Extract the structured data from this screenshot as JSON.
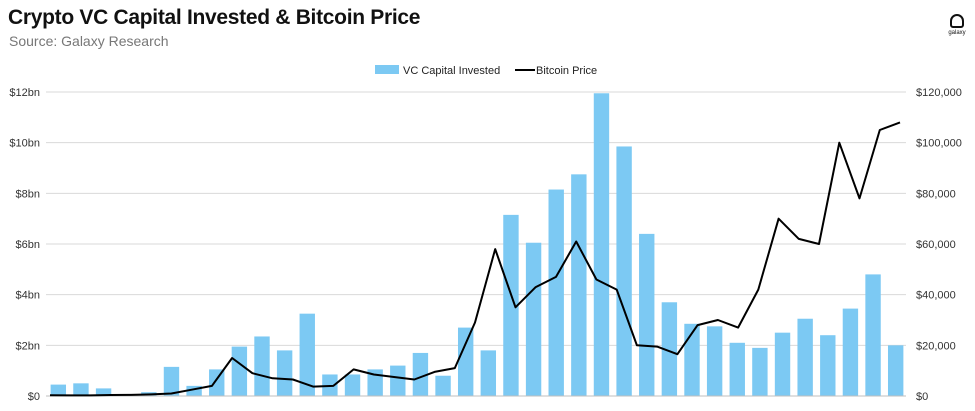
{
  "title": "Crypto VC Capital Invested & Bitcoin Price",
  "subtitle": "Source: Galaxy Research",
  "logo_text": "galaxy",
  "colors": {
    "bars": "#7cc9f3",
    "line": "#000000",
    "grid": "#d9d9d9"
  },
  "chart_data": {
    "type": "bar",
    "legend": [
      "VC Capital Invested",
      "Bitcoin Price"
    ],
    "legend_position": "top-center",
    "grid": true,
    "y_left": {
      "ticks": [
        "$0",
        "$2bn",
        "$4bn",
        "$6bn",
        "$8bn",
        "$10bn",
        "$12bn"
      ],
      "range": [
        0,
        12
      ],
      "unit": "bn"
    },
    "y_right": {
      "ticks": [
        "$0",
        "$20,000",
        "$40,000",
        "$60,000",
        "$80,000",
        "$100,000",
        "$120,000"
      ],
      "range": [
        0,
        120000
      ]
    },
    "series": [
      {
        "name": "VC Capital Invested",
        "type": "bar",
        "values": [
          0.45,
          0.5,
          0.3,
          0.05,
          0.15,
          1.15,
          0.4,
          1.05,
          1.95,
          2.35,
          1.8,
          3.25,
          0.85,
          0.85,
          1.05,
          1.2,
          1.7,
          0.8,
          2.7,
          1.8,
          7.15,
          6.05,
          8.15,
          8.75,
          11.95,
          9.85,
          6.4,
          3.7,
          2.85,
          2.75,
          2.1,
          1.9,
          2.5,
          3.05,
          2.4,
          3.45,
          4.8,
          2.0
        ]
      },
      {
        "name": "Bitcoin Price",
        "type": "line",
        "values": [
          300,
          250,
          250,
          400,
          450,
          650,
          1000,
          2500,
          4000,
          15000,
          9000,
          7000,
          6500,
          3700,
          4000,
          10500,
          8500,
          7500,
          6500,
          9500,
          11000,
          29000,
          58000,
          35000,
          43000,
          47000,
          61000,
          46000,
          42000,
          20000,
          19500,
          16500,
          28000,
          30000,
          27000,
          42000,
          70000,
          62000,
          60000,
          100000,
          78000,
          105000,
          108000
        ]
      }
    ]
  }
}
